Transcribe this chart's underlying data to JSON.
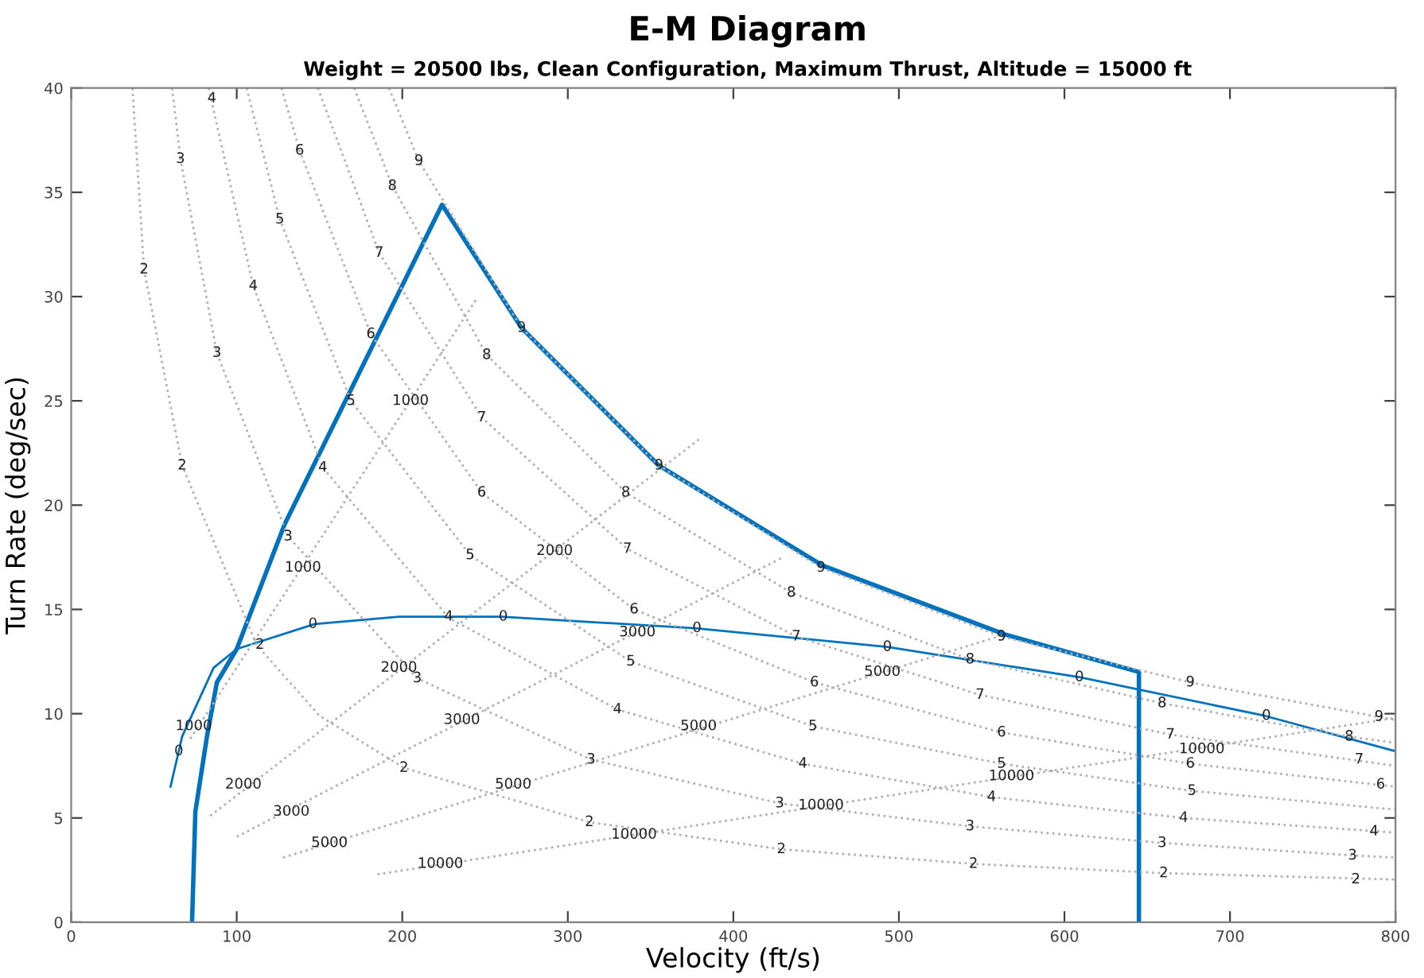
{
  "chart_data": {
    "type": "line",
    "title": "E-M Diagram",
    "subtitle": "Weight = 20500 lbs, Clean Configuration, Maximum Thrust, Altitude = 15000 ft",
    "xlabel": "Velocity (ft/s)",
    "ylabel": "Turn Rate (deg/sec)",
    "xlim": [
      0,
      800
    ],
    "ylim": [
      0,
      40
    ],
    "xticks": [
      0,
      100,
      200,
      300,
      400,
      500,
      600,
      700,
      800
    ],
    "yticks": [
      0,
      5,
      10,
      15,
      20,
      25,
      30,
      35,
      40
    ],
    "grid": false,
    "legend": false,
    "marker": "none",
    "series": [
      {
        "color": "#0072bd",
        "line_style": "solid",
        "x": [
          73,
          75,
          82,
          88,
          100,
          129,
          224,
          272,
          355,
          454,
          564,
          645,
          645
        ],
        "values": [
          0,
          5.3,
          8.9,
          11.5,
          13.1,
          19.1,
          34.4,
          28.5,
          21.9,
          17.1,
          13.8,
          12.0,
          0
        ]
      },
      {
        "color": "#0072bd",
        "line_style": "solid",
        "x": [
          60,
          67,
          86,
          100,
          147,
          198,
          260,
          377,
          493,
          609,
          721,
          800
        ],
        "values": [
          6.5,
          8.9,
          12.2,
          13.1,
          14.3,
          14.65,
          14.65,
          14.1,
          13.2,
          11.75,
          9.9,
          8.2
        ]
      },
      {
        "color": "#b0b0b0",
        "line_style": "dotted",
        "x": [
          37,
          44,
          67,
          112,
          150,
          201,
          313,
          429,
          545,
          661,
          800
        ],
        "values": [
          40,
          31.3,
          21.9,
          13.3,
          9.9,
          7.4,
          4.8,
          3.5,
          2.8,
          2.35,
          2.05
        ]
      },
      {
        "color": "#b0b0b0",
        "line_style": "dotted",
        "x": [
          61,
          66,
          88,
          131,
          209,
          314,
          428,
          543,
          660,
          775,
          800
        ],
        "values": [
          40,
          36.6,
          27.3,
          18.5,
          11.7,
          7.8,
          5.7,
          4.6,
          3.8,
          3.2,
          3.1
        ]
      },
      {
        "color": "#b0b0b0",
        "line_style": "dotted",
        "x": [
          83,
          110,
          152,
          228,
          330,
          442,
          556,
          672,
          800
        ],
        "values": [
          40,
          30.5,
          21.8,
          14.6,
          10.2,
          7.6,
          6.0,
          5.0,
          4.3
        ]
      },
      {
        "color": "#b0b0b0",
        "line_style": "dotted",
        "x": [
          106,
          126,
          169,
          241,
          338,
          448,
          562,
          677,
          800
        ],
        "values": [
          40,
          33.7,
          25.0,
          17.6,
          12.5,
          9.4,
          7.6,
          6.3,
          5.4
        ]
      },
      {
        "color": "#b0b0b0",
        "line_style": "dotted",
        "x": [
          127,
          138,
          181,
          248,
          340,
          449,
          562,
          676,
          800
        ],
        "values": [
          40,
          37.0,
          28.2,
          20.6,
          15.0,
          11.5,
          9.1,
          7.6,
          6.5
        ]
      },
      {
        "color": "#b0b0b0",
        "line_style": "dotted",
        "x": [
          149,
          186,
          248,
          336,
          438,
          549,
          664,
          800
        ],
        "values": [
          40,
          32.1,
          24.2,
          17.9,
          13.7,
          10.9,
          9.0,
          7.5
        ]
      },
      {
        "color": "#b0b0b0",
        "line_style": "dotted",
        "x": [
          171,
          194,
          251,
          335,
          435,
          543,
          659,
          772,
          800
        ],
        "values": [
          40,
          35.3,
          27.2,
          20.6,
          15.8,
          12.6,
          10.5,
          8.9,
          8.6
        ]
      },
      {
        "color": "#b0b0b0",
        "line_style": "dotted",
        "x": [
          192,
          210,
          272,
          355,
          453,
          562,
          676,
          800
        ],
        "values": [
          40,
          36.5,
          28.5,
          21.9,
          17.0,
          13.7,
          11.5,
          9.7
        ]
      },
      {
        "color": "#b0b0b0",
        "line_style": "dotted",
        "x": [
          72,
          245
        ],
        "values": [
          8.8,
          29.9
        ]
      },
      {
        "color": "#b0b0b0",
        "line_style": "dotted",
        "x": [
          84,
          380
        ],
        "values": [
          5.1,
          23.2
        ]
      },
      {
        "color": "#b0b0b0",
        "line_style": "dotted",
        "x": [
          100,
          430
        ],
        "values": [
          4.1,
          17.5
        ]
      },
      {
        "color": "#b0b0b0",
        "line_style": "dotted",
        "x": [
          128,
          560
        ],
        "values": [
          3.1,
          13.7
        ]
      },
      {
        "color": "#b0b0b0",
        "line_style": "dotted",
        "x": [
          185,
          800
        ],
        "values": [
          2.3,
          9.8
        ]
      }
    ],
    "annotations": [
      {
        "text": "4",
        "x": 85,
        "y": 39.5
      },
      {
        "text": "3",
        "x": 66,
        "y": 36.6
      },
      {
        "text": "6",
        "x": 138,
        "y": 37.0
      },
      {
        "text": "9",
        "x": 210,
        "y": 36.5
      },
      {
        "text": "8",
        "x": 194,
        "y": 35.3
      },
      {
        "text": "5",
        "x": 126,
        "y": 33.7
      },
      {
        "text": "7",
        "x": 186,
        "y": 32.1
      },
      {
        "text": "2",
        "x": 44,
        "y": 31.3
      },
      {
        "text": "4",
        "x": 110,
        "y": 30.5
      },
      {
        "text": "3",
        "x": 88,
        "y": 27.3
      },
      {
        "text": "6",
        "x": 181,
        "y": 28.2
      },
      {
        "text": "9",
        "x": 272,
        "y": 28.5
      },
      {
        "text": "8",
        "x": 251,
        "y": 27.2
      },
      {
        "text": "5",
        "x": 169,
        "y": 25.0
      },
      {
        "text": "7",
        "x": 248,
        "y": 24.2
      },
      {
        "text": "1000",
        "x": 205,
        "y": 25.0
      },
      {
        "text": "2",
        "x": 67,
        "y": 21.9
      },
      {
        "text": "4",
        "x": 152,
        "y": 21.8
      },
      {
        "text": "6",
        "x": 248,
        "y": 20.6
      },
      {
        "text": "9",
        "x": 355,
        "y": 21.9
      },
      {
        "text": "8",
        "x": 335,
        "y": 20.6
      },
      {
        "text": "3",
        "x": 131,
        "y": 18.5
      },
      {
        "text": "7",
        "x": 336,
        "y": 17.9
      },
      {
        "text": "2000",
        "x": 292,
        "y": 17.8
      },
      {
        "text": "5",
        "x": 241,
        "y": 17.6
      },
      {
        "text": "1000",
        "x": 140,
        "y": 17.0
      },
      {
        "text": "9",
        "x": 453,
        "y": 17.0
      },
      {
        "text": "8",
        "x": 435,
        "y": 15.8
      },
      {
        "text": "6",
        "x": 340,
        "y": 15.0
      },
      {
        "text": "4",
        "x": 228,
        "y": 14.65
      },
      {
        "text": "0",
        "x": 146,
        "y": 14.3
      },
      {
        "text": "0",
        "x": 261,
        "y": 14.65
      },
      {
        "text": "0",
        "x": 378,
        "y": 14.1
      },
      {
        "text": "3000",
        "x": 342,
        "y": 13.9
      },
      {
        "text": "7",
        "x": 438,
        "y": 13.7
      },
      {
        "text": "0",
        "x": 493,
        "y": 13.2
      },
      {
        "text": "2",
        "x": 114,
        "y": 13.3
      },
      {
        "text": "9",
        "x": 562,
        "y": 13.7
      },
      {
        "text": "5",
        "x": 338,
        "y": 12.5
      },
      {
        "text": "8",
        "x": 543,
        "y": 12.6
      },
      {
        "text": "2000",
        "x": 198,
        "y": 12.2
      },
      {
        "text": "5000",
        "x": 490,
        "y": 12.0
      },
      {
        "text": "0",
        "x": 609,
        "y": 11.75
      },
      {
        "text": "3",
        "x": 209,
        "y": 11.7
      },
      {
        "text": "6",
        "x": 449,
        "y": 11.5
      },
      {
        "text": "9",
        "x": 676,
        "y": 11.5
      },
      {
        "text": "7",
        "x": 549,
        "y": 10.9
      },
      {
        "text": "8",
        "x": 659,
        "y": 10.5
      },
      {
        "text": "4",
        "x": 330,
        "y": 10.2
      },
      {
        "text": "0",
        "x": 722,
        "y": 9.9
      },
      {
        "text": "9",
        "x": 790,
        "y": 9.85
      },
      {
        "text": "3000",
        "x": 236,
        "y": 9.7
      },
      {
        "text": "1000",
        "x": 74,
        "y": 9.4
      },
      {
        "text": "5000",
        "x": 379,
        "y": 9.4
      },
      {
        "text": "5",
        "x": 448,
        "y": 9.4
      },
      {
        "text": "6",
        "x": 562,
        "y": 9.1
      },
      {
        "text": "7",
        "x": 664,
        "y": 9.0
      },
      {
        "text": "8",
        "x": 772,
        "y": 8.9
      },
      {
        "text": "10000",
        "x": 683,
        "y": 8.3
      },
      {
        "text": "0",
        "x": 65,
        "y": 8.2
      },
      {
        "text": "3",
        "x": 314,
        "y": 7.8
      },
      {
        "text": "7",
        "x": 778,
        "y": 7.8
      },
      {
        "text": "4",
        "x": 442,
        "y": 7.6
      },
      {
        "text": "5",
        "x": 562,
        "y": 7.6
      },
      {
        "text": "6",
        "x": 676,
        "y": 7.6
      },
      {
        "text": "2",
        "x": 201,
        "y": 7.4
      },
      {
        "text": "10000",
        "x": 568,
        "y": 7.0
      },
      {
        "text": "2000",
        "x": 104,
        "y": 6.6
      },
      {
        "text": "5000",
        "x": 267,
        "y": 6.6
      },
      {
        "text": "6",
        "x": 791,
        "y": 6.6
      },
      {
        "text": "5",
        "x": 677,
        "y": 6.3
      },
      {
        "text": "4",
        "x": 556,
        "y": 6.0
      },
      {
        "text": "3",
        "x": 428,
        "y": 5.7
      },
      {
        "text": "10000",
        "x": 453,
        "y": 5.6
      },
      {
        "text": "3000",
        "x": 133,
        "y": 5.3
      },
      {
        "text": "4",
        "x": 672,
        "y": 5.0
      },
      {
        "text": "2",
        "x": 313,
        "y": 4.8
      },
      {
        "text": "3",
        "x": 543,
        "y": 4.6
      },
      {
        "text": "4",
        "x": 787,
        "y": 4.35
      },
      {
        "text": "10000",
        "x": 340,
        "y": 4.2
      },
      {
        "text": "5000",
        "x": 156,
        "y": 3.8
      },
      {
        "text": "3",
        "x": 659,
        "y": 3.8
      },
      {
        "text": "2",
        "x": 429,
        "y": 3.5
      },
      {
        "text": "3",
        "x": 774,
        "y": 3.2
      },
      {
        "text": "10000",
        "x": 223,
        "y": 2.8
      },
      {
        "text": "2",
        "x": 545,
        "y": 2.8
      },
      {
        "text": "2",
        "x": 660,
        "y": 2.35
      },
      {
        "text": "2",
        "x": 776,
        "y": 2.05
      }
    ]
  }
}
